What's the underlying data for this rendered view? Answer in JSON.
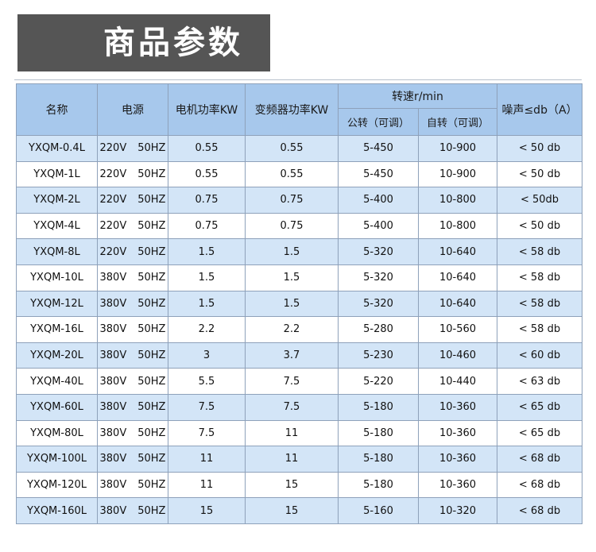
{
  "banner": {
    "title": "商品参数"
  },
  "table": {
    "headers": {
      "name": "名称",
      "power": "电源",
      "motor": "电机功率KW",
      "inverter": "变频器功率KW",
      "speed": "转速r/min",
      "revolution": "公转（可调）",
      "rotation": "自转（可调）",
      "noise": "噪声≤db（A）"
    },
    "rows": [
      {
        "name": "YXQM-0.4L",
        "voltage": "220V",
        "freq": "50HZ",
        "motor": "0.55",
        "inverter": "0.55",
        "revolution": "5-450",
        "rotation": "10-900",
        "noise": "< 50 db"
      },
      {
        "name": "YXQM-1L",
        "voltage": "220V",
        "freq": "50HZ",
        "motor": "0.55",
        "inverter": "0.55",
        "revolution": "5-450",
        "rotation": "10-900",
        "noise": "< 50 db"
      },
      {
        "name": "YXQM-2L",
        "voltage": "220V",
        "freq": "50HZ",
        "motor": "0.75",
        "inverter": "0.75",
        "revolution": "5-400",
        "rotation": "10-800",
        "noise": "< 50db"
      },
      {
        "name": "YXQM-4L",
        "voltage": "220V",
        "freq": "50HZ",
        "motor": "0.75",
        "inverter": "0.75",
        "revolution": "5-400",
        "rotation": "10-800",
        "noise": "< 50 db"
      },
      {
        "name": "YXQM-8L",
        "voltage": "220V",
        "freq": "50HZ",
        "motor": "1.5",
        "inverter": "1.5",
        "revolution": "5-320",
        "rotation": "10-640",
        "noise": "< 58 db"
      },
      {
        "name": "YXQM-10L",
        "voltage": "380V",
        "freq": "50HZ",
        "motor": "1.5",
        "inverter": "1.5",
        "revolution": "5-320",
        "rotation": "10-640",
        "noise": "< 58 db"
      },
      {
        "name": "YXQM-12L",
        "voltage": "380V",
        "freq": "50HZ",
        "motor": "1.5",
        "inverter": "1.5",
        "revolution": "5-320",
        "rotation": "10-640",
        "noise": "< 58 db"
      },
      {
        "name": "YXQM-16L",
        "voltage": "380V",
        "freq": "50HZ",
        "motor": "2.2",
        "inverter": "2.2",
        "revolution": "5-280",
        "rotation": "10-560",
        "noise": "< 58 db"
      },
      {
        "name": "YXQM-20L",
        "voltage": "380V",
        "freq": "50HZ",
        "motor": "3",
        "inverter": "3.7",
        "revolution": "5-230",
        "rotation": "10-460",
        "noise": "< 60 db"
      },
      {
        "name": "YXQM-40L",
        "voltage": "380V",
        "freq": "50HZ",
        "motor": "5.5",
        "inverter": "7.5",
        "revolution": "5-220",
        "rotation": "10-440",
        "noise": "< 63 db"
      },
      {
        "name": "YXQM-60L",
        "voltage": "380V",
        "freq": "50HZ",
        "motor": "7.5",
        "inverter": "7.5",
        "revolution": "5-180",
        "rotation": "10-360",
        "noise": "< 65 db"
      },
      {
        "name": "YXQM-80L",
        "voltage": "380V",
        "freq": "50HZ",
        "motor": "7.5",
        "inverter": "11",
        "revolution": "5-180",
        "rotation": "10-360",
        "noise": "< 65 db"
      },
      {
        "name": "YXQM-100L",
        "voltage": "380V",
        "freq": "50HZ",
        "motor": "11",
        "inverter": "11",
        "revolution": "5-180",
        "rotation": "10-360",
        "noise": "< 68 db"
      },
      {
        "name": "YXQM-120L",
        "voltage": "380V",
        "freq": "50HZ",
        "motor": "11",
        "inverter": "15",
        "revolution": "5-180",
        "rotation": "10-360",
        "noise": "< 68 db"
      },
      {
        "name": "YXQM-160L",
        "voltage": "380V",
        "freq": "50HZ",
        "motor": "15",
        "inverter": "15",
        "revolution": "5-160",
        "rotation": "10-320",
        "noise": "< 68 db"
      }
    ]
  },
  "colors": {
    "banner_bg": "#555555",
    "header_bg": "#a7c8ec",
    "shaded_row": "#d3e5f7",
    "border": "#8ea1ba"
  }
}
